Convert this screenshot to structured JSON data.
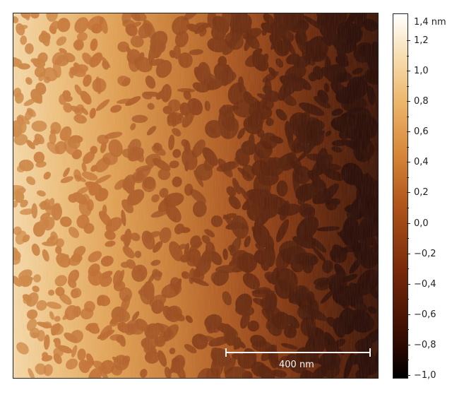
{
  "image": {
    "description_icon": "afm-height-map",
    "colormap": [
      "#000000",
      "#3a0d02",
      "#7a2a0a",
      "#b2561b",
      "#d8883a",
      "#edb66c",
      "#f7dcae",
      "#ffffff"
    ]
  },
  "colorbar": {
    "unit_top_label": "1,4 nm",
    "ticks": [
      "1,2",
      "1,0",
      "0,8",
      "0,6",
      "0,4",
      "0,2",
      "0,0",
      "−0,2",
      "−0,4",
      "−0,6",
      "−0,8",
      "−1,0"
    ]
  },
  "scalebar": {
    "label": "400 nm"
  }
}
